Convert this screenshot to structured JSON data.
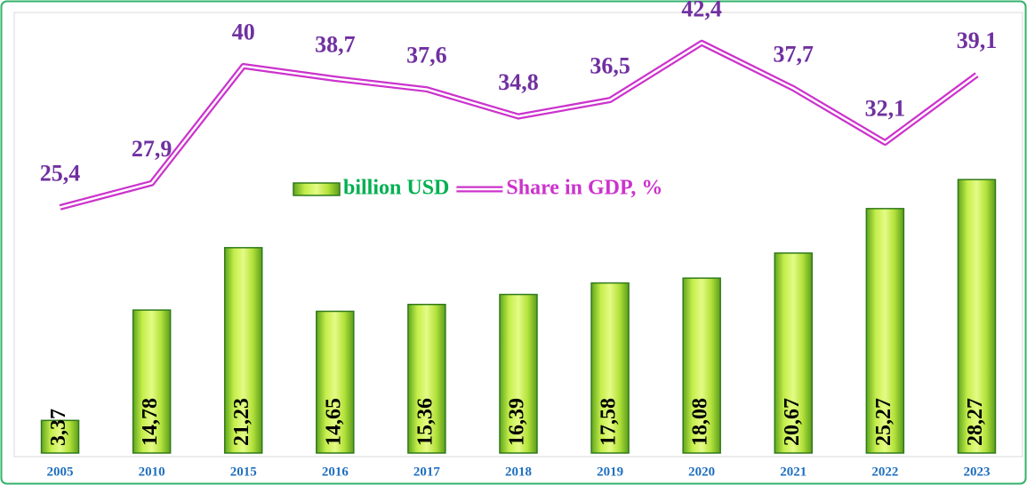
{
  "chart_data": {
    "type": "bar-line",
    "categories": [
      "2005",
      "2010",
      "2015",
      "2016",
      "2017",
      "2018",
      "2019",
      "2020",
      "2021",
      "2022",
      "2023"
    ],
    "series": [
      {
        "name": "billion USD",
        "color": "#92d050",
        "type": "bar",
        "values": [
          3.37,
          14.78,
          21.23,
          14.65,
          15.36,
          16.39,
          17.58,
          18.08,
          20.67,
          25.27,
          28.27
        ],
        "value_labels": [
          "3,37",
          "14,78",
          "21,23",
          "14,65",
          "15,36",
          "16,39",
          "17,58",
          "18,08",
          "20,67",
          "25,27",
          "28,27"
        ]
      },
      {
        "name": "Share in GDP, %",
        "color": "#cc33cc",
        "type": "line",
        "axis": "y2",
        "values": [
          25.4,
          27.9,
          40,
          38.7,
          37.6,
          34.8,
          36.5,
          42.4,
          37.7,
          32.1,
          39.1
        ],
        "value_labels": [
          "25,4",
          "27,9",
          "40",
          "38,7",
          "37,6",
          "34,8",
          "36,5",
          "42,4",
          "37,7",
          "32,1",
          "39,1"
        ]
      }
    ],
    "ylim": [
      0,
      45
    ],
    "y2lim": [
      0,
      45
    ]
  }
}
